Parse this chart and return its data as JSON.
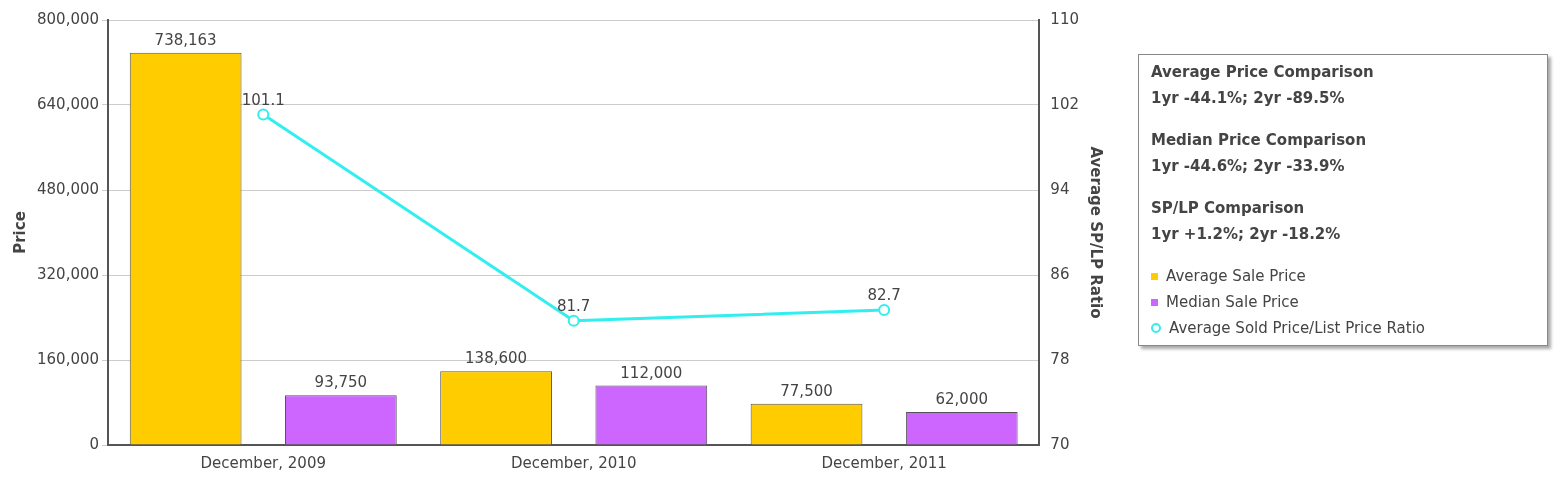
{
  "chart_data": {
    "type": "bar",
    "ylabel": "Price",
    "y2label": "Average SP/LP Ratio",
    "categories": [
      "December, 2009",
      "December, 2010",
      "December, 2011"
    ],
    "series": [
      {
        "name": "Average Sale Price",
        "color": "#ffcc00",
        "values": [
          738163,
          138600,
          77500
        ],
        "value_labels": [
          "738,163",
          "138,600",
          "77,500"
        ]
      },
      {
        "name": "Median Sale Price",
        "color": "#cc66ff",
        "values": [
          93750,
          112000,
          62000
        ],
        "value_labels": [
          "93,750",
          "112,000",
          "62,000"
        ]
      },
      {
        "name": "Average Sold Price/List Price Ratio",
        "type": "line",
        "axis": "y2",
        "color": "#33eeee",
        "marker": "circle",
        "values": [
          101.1,
          81.7,
          82.7
        ]
      }
    ],
    "ylim": [
      0,
      800000
    ],
    "yticks": [
      {
        "value": 0,
        "label": "0"
      },
      {
        "value": 160000,
        "label": "160,000"
      },
      {
        "value": 320000,
        "label": "320,000"
      },
      {
        "value": 480000,
        "label": "480,000"
      },
      {
        "value": 640000,
        "label": "640,000"
      },
      {
        "value": 800000,
        "label": "800,000"
      }
    ],
    "y2lim": [
      70,
      110
    ],
    "y2ticks": [
      70,
      78,
      86,
      94,
      102,
      110
    ],
    "grid": "y",
    "legend": "right",
    "data_labels": true,
    "annotations": [
      "Average Price Comparison",
      "1yr -44.1%; 2yr -89.5%",
      "Median Price Comparison",
      "1yr -44.6%; 2yr -33.9%",
      "SP/LP Comparison",
      "1yr +1.2%; 2yr -18.2%"
    ]
  }
}
